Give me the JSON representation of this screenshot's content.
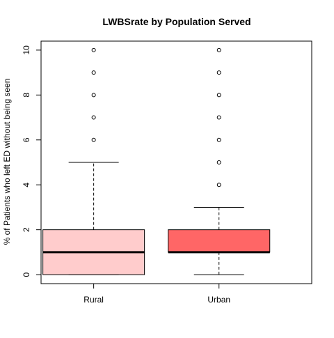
{
  "chart_data": {
    "type": "boxplot",
    "title": "LWBSrate by Population Served",
    "xlabel": "",
    "ylabel": "% of Patients who left ED without being seen",
    "ylim": [
      -0.4,
      10.4
    ],
    "yticks": [
      0,
      2,
      4,
      6,
      8,
      10
    ],
    "grid": false,
    "categories": [
      "Rural",
      "Urban"
    ],
    "boxes": [
      {
        "name": "Rural",
        "color": "#FFCCCC",
        "min": 0,
        "q1": 0,
        "median": 1,
        "q3": 2,
        "max": 5,
        "outliers": [
          6,
          7,
          8,
          9,
          10
        ]
      },
      {
        "name": "Urban",
        "color": "#FF6666",
        "min": 0,
        "q1": 1,
        "median": 1,
        "q3": 2,
        "max": 3,
        "outliers": [
          4,
          5,
          6,
          7,
          8,
          9,
          10
        ]
      }
    ]
  }
}
